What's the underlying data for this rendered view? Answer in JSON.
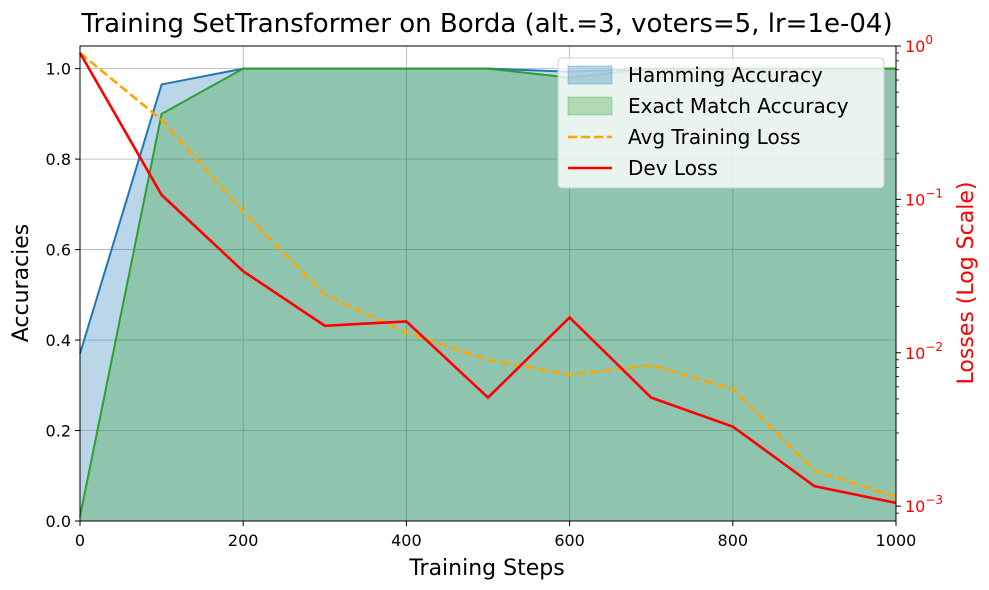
{
  "chart_data": {
    "type": "line",
    "title": "Training SetTransformer on Borda (alt.=3, voters=5, lr=1e-04)",
    "xlabel": "Training Steps",
    "ylabel": "Accuracies",
    "y2label": "Losses (Log Scale)",
    "xlim": [
      0,
      1000
    ],
    "ylim": [
      0,
      1.05
    ],
    "y2lim": [
      0.0008,
      1.0
    ],
    "y2scale": "log",
    "grid": true,
    "legend_position": "top-right",
    "x": [
      0,
      100,
      200,
      300,
      400,
      500,
      600,
      700,
      800,
      900,
      1000
    ],
    "x_ticks": [
      "0",
      "200",
      "400",
      "600",
      "800",
      "1000"
    ],
    "y_ticks": [
      "0.0",
      "0.2",
      "0.4",
      "0.6",
      "0.8",
      "1.0"
    ],
    "y2_ticks": [
      {
        "base": "10",
        "exp": "0",
        "value": 1.0
      },
      {
        "base": "10",
        "exp": "−1",
        "value": 0.1
      },
      {
        "base": "10",
        "exp": "−2",
        "value": 0.01
      },
      {
        "base": "10",
        "exp": "−3",
        "value": 0.001
      }
    ],
    "series": [
      {
        "name": "Hamming Accuracy",
        "axis": "left",
        "style": "area",
        "color": "#1f77b4",
        "values": [
          0.37,
          0.965,
          1.0,
          1.0,
          1.0,
          1.0,
          0.993,
          1.0,
          1.0,
          1.0,
          1.0
        ]
      },
      {
        "name": "Exact Match Accuracy",
        "axis": "left",
        "style": "area",
        "color": "#2ca02c",
        "values": [
          0.01,
          0.9,
          1.0,
          1.0,
          1.0,
          1.0,
          0.98,
          1.0,
          1.0,
          1.0,
          1.0
        ]
      },
      {
        "name": "Avg Training Loss",
        "axis": "right",
        "style": "dashed",
        "color": "#ffa500",
        "values": [
          0.9,
          0.33,
          0.083,
          0.024,
          0.0135,
          0.009,
          0.0072,
          0.0083,
          0.0058,
          0.0017,
          0.00115
        ]
      },
      {
        "name": "Dev Loss",
        "axis": "right",
        "style": "solid",
        "color": "#ff0000",
        "values": [
          0.9,
          0.107,
          0.034,
          0.015,
          0.016,
          0.0051,
          0.017,
          0.0051,
          0.0033,
          0.00135,
          0.00105
        ]
      }
    ]
  }
}
